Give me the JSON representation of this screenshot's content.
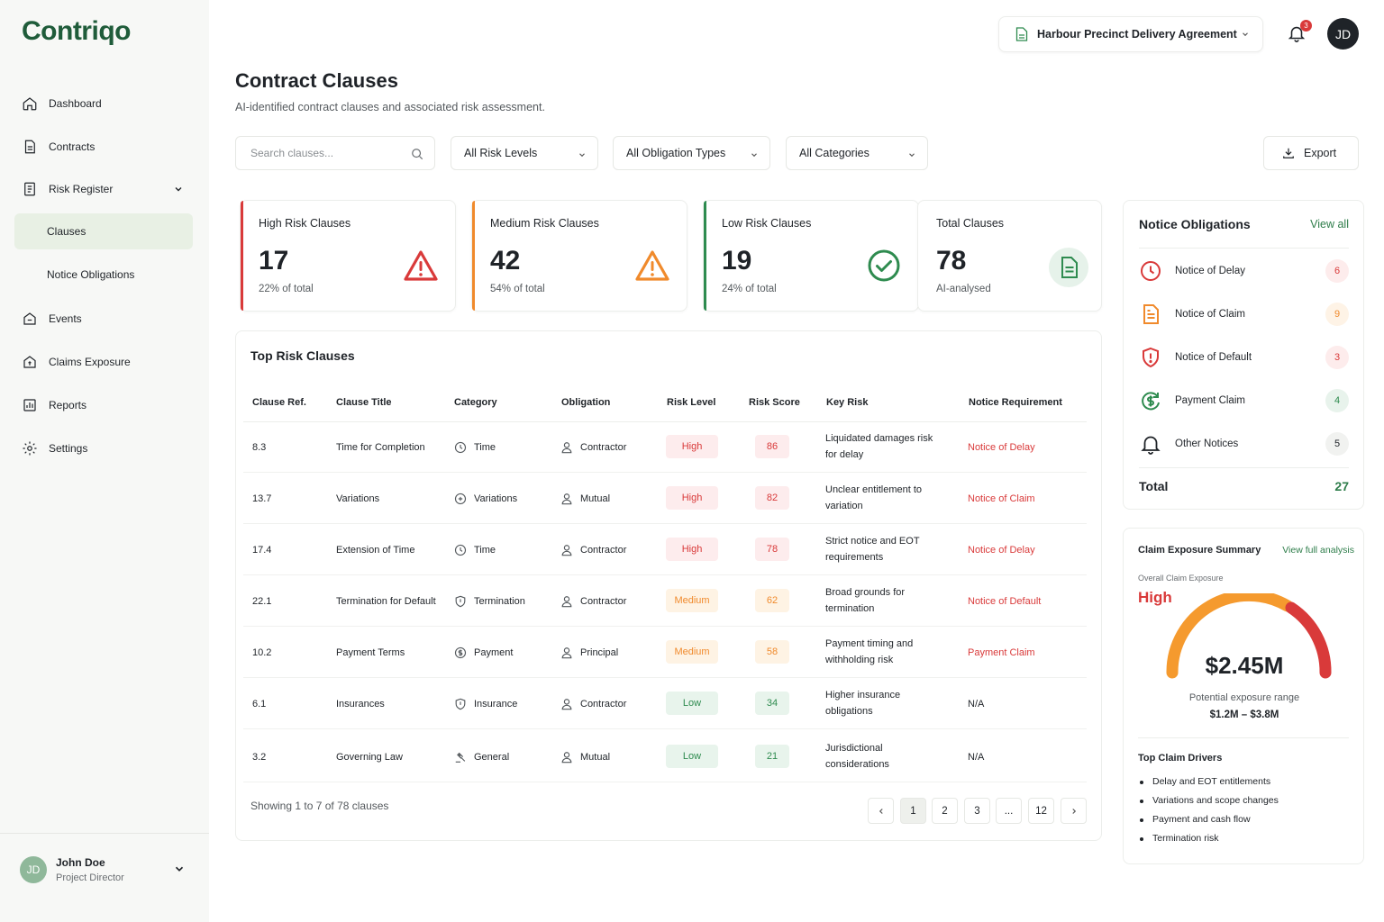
{
  "app": {
    "logo": "Contriqo"
  },
  "sidebar": {
    "items": [
      {
        "label": "Dashboard"
      },
      {
        "label": "Contracts"
      },
      {
        "label": "Risk Register"
      },
      {
        "label": "Clauses"
      },
      {
        "label": "Notice Obligations"
      },
      {
        "label": "Events"
      },
      {
        "label": "Claims Exposure"
      },
      {
        "label": "Reports"
      },
      {
        "label": "Settings"
      }
    ],
    "user": {
      "initials": "JD",
      "name": "John Doe",
      "role": "Project Director"
    }
  },
  "topbar": {
    "contract": "Harbour Precinct Delivery Agreement",
    "notifications": "3",
    "avatar": "JD"
  },
  "page": {
    "title": "Contract Clauses",
    "subtitle": "AI-identified contract clauses and associated risk assessment."
  },
  "filters": {
    "search_placeholder": "Search clauses...",
    "risk_level": "All Risk Levels",
    "obligation_type": "All Obligation Types",
    "category": "All Categories",
    "export": "Export"
  },
  "stats": [
    {
      "label": "High Risk Clauses",
      "value": "17",
      "sub": "22% of total",
      "color": "#d93a3a"
    },
    {
      "label": "Medium Risk Clauses",
      "value": "42",
      "sub": "54% of total",
      "color": "#f08a2c"
    },
    {
      "label": "Low Risk Clauses",
      "value": "19",
      "sub": "24% of total",
      "color": "#2e8b4f"
    },
    {
      "label": "Total Clauses",
      "value": "78",
      "sub": "AI-analysed",
      "color": "#2e8b4f"
    }
  ],
  "table": {
    "title": "Top Risk Clauses",
    "columns": [
      "Clause Ref.",
      "Clause Title",
      "Category",
      "Obligation",
      "Risk Level",
      "Risk Score",
      "Key Risk",
      "Notice Requirement"
    ],
    "rows": [
      {
        "ref": "8.3",
        "title": "Time for Completion",
        "category": "Time",
        "cat_icon": "clock-icon",
        "obligation": "Contractor",
        "risk": "High",
        "score": "86",
        "key_risk": "Liquidated damages risk for delay",
        "notice": "Notice of Delay"
      },
      {
        "ref": "13.7",
        "title": "Variations",
        "category": "Variations",
        "cat_icon": "variations-icon",
        "obligation": "Mutual",
        "risk": "High",
        "score": "82",
        "key_risk": "Unclear entitlement to variation",
        "notice": "Notice of Claim"
      },
      {
        "ref": "17.4",
        "title": "Extension of Time",
        "category": "Time",
        "cat_icon": "clock-icon",
        "obligation": "Contractor",
        "risk": "High",
        "score": "78",
        "key_risk": "Strict notice and EOT requirements",
        "notice": "Notice of Delay"
      },
      {
        "ref": "22.1",
        "title": "Termination for Default",
        "category": "Termination",
        "cat_icon": "shield-icon",
        "obligation": "Contractor",
        "risk": "Medium",
        "score": "62",
        "key_risk": "Broad grounds for termination",
        "notice": "Notice of Default"
      },
      {
        "ref": "10.2",
        "title": "Payment Terms",
        "category": "Payment",
        "cat_icon": "dollar-icon",
        "obligation": "Principal",
        "risk": "Medium",
        "score": "58",
        "key_risk": "Payment timing and withholding risk",
        "notice": "Payment Claim"
      },
      {
        "ref": "6.1",
        "title": "Insurances",
        "category": "Insurance",
        "cat_icon": "shield-icon",
        "obligation": "Contractor",
        "risk": "Low",
        "score": "34",
        "key_risk": "Higher insurance obligations",
        "notice": "N/A"
      },
      {
        "ref": "3.2",
        "title": "Governing Law",
        "category": "General",
        "cat_icon": "gavel-icon",
        "obligation": "Mutual",
        "risk": "Low",
        "score": "21",
        "key_risk": "Jurisdictional considerations",
        "notice": "N/A"
      }
    ],
    "showing": "Showing 1 to 7 of 78 clauses",
    "pages": [
      "1",
      "2",
      "3",
      "...",
      "12"
    ]
  },
  "notices": {
    "title": "Notice Obligations",
    "view_all": "View all",
    "items": [
      {
        "label": "Notice of Delay",
        "count": "6"
      },
      {
        "label": "Notice of Claim",
        "count": "9"
      },
      {
        "label": "Notice of Default",
        "count": "3"
      },
      {
        "label": "Payment Claim",
        "count": "4"
      },
      {
        "label": "Other Notices",
        "count": "5"
      }
    ],
    "total_label": "Total",
    "total": "27"
  },
  "claims": {
    "title": "Claim Exposure Summary",
    "view": "View full analysis",
    "overall_label": "Overall Claim Exposure",
    "level": "High",
    "amount": "$2.45M",
    "range_label": "Potential exposure range",
    "range": "$1.2M – $3.8M",
    "drivers_title": "Top Claim Drivers",
    "drivers": [
      "Delay and EOT entitlements",
      "Variations and scope changes",
      "Payment and cash flow",
      "Termination risk"
    ]
  },
  "colors": {
    "brand": "#1f5c3a",
    "accent": "#2e7d4a",
    "high": "#d93a3a",
    "medium": "#f08a2c",
    "low": "#2e8b4f"
  }
}
